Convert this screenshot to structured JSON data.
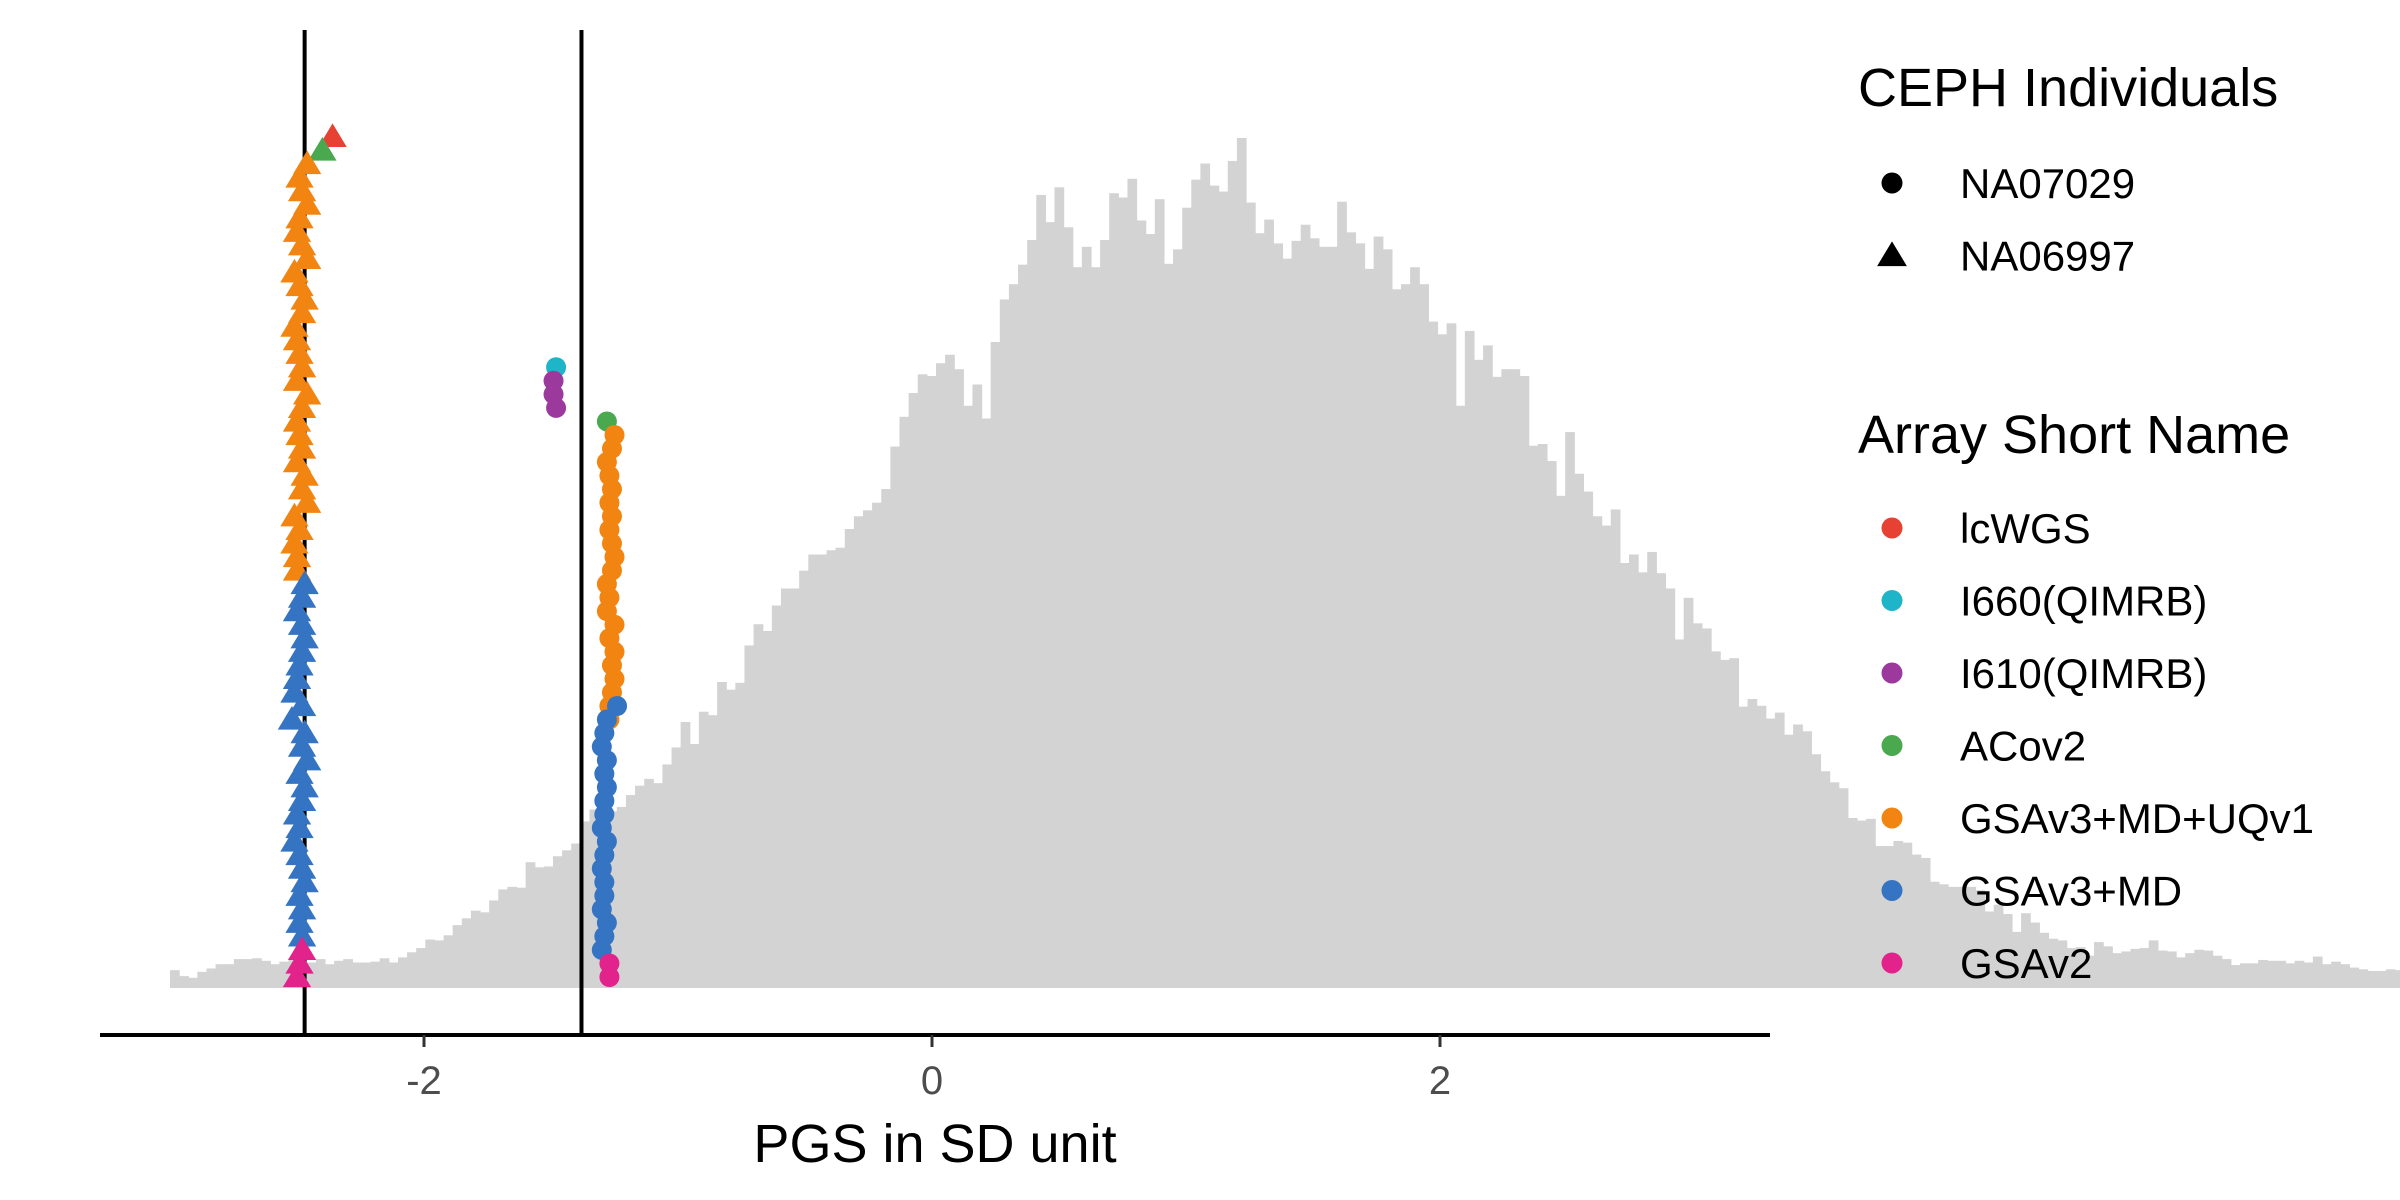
{
  "chart_data": {
    "type": "histogram",
    "xlabel": "PGS in SD unit",
    "ylabel": "",
    "xlim": [
      -3.3,
      3.3
    ],
    "x_ticks": [
      -2,
      0,
      2
    ],
    "x_tick_labels": [
      "-2",
      "0",
      "2"
    ],
    "grid": false,
    "histogram": {
      "color": "#d3d3d3",
      "bin_width": 0.0359,
      "range": [
        -3.0,
        3.0
      ],
      "relative_heights": [
        0.021,
        0.014,
        0.012,
        0.019,
        0.023,
        0.028,
        0.028,
        0.034,
        0.034,
        0.035,
        0.032,
        0.028,
        0.031,
        0.033,
        0.03,
        0.03,
        0.034,
        0.028,
        0.032,
        0.034,
        0.03,
        0.03,
        0.031,
        0.035,
        0.03,
        0.036,
        0.042,
        0.047,
        0.057,
        0.056,
        0.062,
        0.074,
        0.082,
        0.091,
        0.089,
        0.103,
        0.116,
        0.119,
        0.118,
        0.148,
        0.142,
        0.143,
        0.155,
        0.162,
        0.17,
        0.196,
        0.21,
        0.201,
        0.208,
        0.213,
        0.227,
        0.238,
        0.246,
        0.241,
        0.263,
        0.283,
        0.313,
        0.287,
        0.325,
        0.321,
        0.36,
        0.351,
        0.359,
        0.403,
        0.428,
        0.42,
        0.45,
        0.47,
        0.47,
        0.491,
        0.51,
        0.51,
        0.515,
        0.518,
        0.54,
        0.555,
        0.562,
        0.571,
        0.587,
        0.637,
        0.672,
        0.7,
        0.722,
        0.72,
        0.735,
        0.745,
        0.728,
        0.685,
        0.71,
        0.67,
        0.76,
        0.81,
        0.828,
        0.851,
        0.88,
        0.933,
        0.901,
        0.942,
        0.895,
        0.848,
        0.872,
        0.848,
        0.88,
        0.935,
        0.93,
        0.952,
        0.903,
        0.887,
        0.928,
        0.852,
        0.869,
        0.918,
        0.951,
        0.97,
        0.944,
        0.937,
        0.973,
        1.0,
        0.924,
        0.888,
        0.904,
        0.876,
        0.858,
        0.879,
        0.898,
        0.882,
        0.872,
        0.872,
        0.925,
        0.889,
        0.876,
        0.846,
        0.884,
        0.869,
        0.822,
        0.828,
        0.848,
        0.828,
        0.784,
        0.769,
        0.782,
        0.685,
        0.773,
        0.739,
        0.756,
        0.719,
        0.728,
        0.728,
        0.72,
        0.638,
        0.64,
        0.62,
        0.579,
        0.654,
        0.605,
        0.584,
        0.555,
        0.544,
        0.563,
        0.5,
        0.51,
        0.489,
        0.513,
        0.488,
        0.47,
        0.41,
        0.459,
        0.429,
        0.423,
        0.396,
        0.386,
        0.388,
        0.331,
        0.34,
        0.332,
        0.317,
        0.324,
        0.298,
        0.31,
        0.302,
        0.275,
        0.255,
        0.242,
        0.235,
        0.2,
        0.197,
        0.199,
        0.167,
        0.167,
        0.173,
        0.171,
        0.157,
        0.153,
        0.125,
        0.122,
        0.119,
        0.119,
        0.119,
        0.115,
        0.09,
        0.098,
        0.087,
        0.066,
        0.088,
        0.077,
        0.065,
        0.058,
        0.056,
        0.047,
        0.048,
        0.038,
        0.054,
        0.049,
        0.041,
        0.043,
        0.046,
        0.047,
        0.056,
        0.044,
        0.043,
        0.036,
        0.041,
        0.045,
        0.044,
        0.038,
        0.034,
        0.027,
        0.029,
        0.029,
        0.033,
        0.032,
        0.032,
        0.029,
        0.032,
        0.03,
        0.037,
        0.028,
        0.031,
        0.028,
        0.024,
        0.022,
        0.02,
        0.02,
        0.022,
        0.021,
        0.024,
        0.02,
        0.021,
        0.014,
        0.015,
        0.016,
        0.014
      ]
    },
    "vlines": [
      -2.47,
      -1.38
    ],
    "legends": [
      {
        "title": "CEPH Individuals",
        "entries": [
          {
            "label": "NA07029",
            "shape": "circle",
            "color": "#000000"
          },
          {
            "label": "NA06997",
            "shape": "triangle",
            "color": "#000000"
          }
        ]
      },
      {
        "title": "Array Short Name",
        "entries": [
          {
            "label": "lcWGS",
            "shape": "circle",
            "color": "#e64133"
          },
          {
            "label": "I660(QIMRB)",
            "shape": "circle",
            "color": "#1fb5c9"
          },
          {
            "label": "I610(QIMRB)",
            "shape": "circle",
            "color": "#9b3a9c"
          },
          {
            "label": "ACov2",
            "shape": "circle",
            "color": "#4aa84f"
          },
          {
            "label": "GSAv3+MD+UQv1",
            "shape": "circle",
            "color": "#f28511"
          },
          {
            "label": "GSAv3+MD",
            "shape": "circle",
            "color": "#3574c2"
          },
          {
            "label": "GSAv2",
            "shape": "circle",
            "color": "#e2238c"
          }
        ]
      }
    ],
    "points": [
      {
        "individual": "NA06997",
        "array": "lcWGS",
        "x": -2.36,
        "rank": 62
      },
      {
        "individual": "NA06997",
        "array": "ACov2",
        "x": -2.4,
        "rank": 61
      },
      {
        "individual": "NA06997",
        "array": "GSAv3+MD+UQv1",
        "x": [
          -2.5,
          -2.5,
          -2.51,
          -2.49,
          -2.51,
          -2.46,
          -2.48,
          -2.47,
          -2.5,
          -2.48,
          -2.49,
          -2.5,
          -2.48,
          -2.46,
          -2.5,
          -2.48,
          -2.49,
          -2.5,
          -2.51,
          -2.48,
          -2.47,
          -2.49,
          -2.51,
          -2.46,
          -2.48,
          -2.5,
          -2.49,
          -2.46,
          -2.48,
          -2.49,
          -2.46
        ],
        "rank_start": 30
      },
      {
        "individual": "NA06997",
        "array": "GSAv3+MD",
        "x": [
          -2.48,
          -2.49,
          -2.48,
          -2.49,
          -2.47,
          -2.48,
          -2.49,
          -2.51,
          -2.49,
          -2.5,
          -2.48,
          -2.47,
          -2.49,
          -2.46,
          -2.48,
          -2.47,
          -2.52,
          -2.48,
          -2.51,
          -2.5,
          -2.49,
          -2.48,
          -2.47,
          -2.48,
          -2.5,
          -2.48,
          -2.47
        ],
        "rank_start": 3
      },
      {
        "individual": "NA06997",
        "array": "GSAv2",
        "x": [
          -2.5,
          -2.49,
          -2.48
        ],
        "rank_start": 0
      },
      {
        "individual": "NA07029",
        "array": "I660(QIMRB)",
        "x": -1.48,
        "rank": 45
      },
      {
        "individual": "NA07029",
        "array": "I610(QIMRB)",
        "x": [
          -1.48,
          -1.49,
          -1.49
        ],
        "rank_start": 42
      },
      {
        "individual": "NA07029",
        "array": "ACov2",
        "x": -1.28,
        "rank": 41
      },
      {
        "individual": "NA07029",
        "array": "GSAv3+MD+UQv1",
        "x": [
          -1.27,
          -1.27,
          -1.26,
          -1.25,
          -1.26,
          -1.25,
          -1.27,
          -1.25,
          -1.28,
          -1.27,
          -1.28,
          -1.26,
          -1.25,
          -1.26,
          -1.27,
          -1.26,
          -1.27,
          -1.26,
          -1.27,
          -1.28,
          -1.26,
          -1.25
        ],
        "rank_start": 19
      },
      {
        "individual": "NA07029",
        "array": "GSAv3+MD",
        "x": [
          -1.3,
          -1.29,
          -1.28,
          -1.3,
          -1.29,
          -1.29,
          -1.3,
          -1.29,
          -1.28,
          -1.3,
          -1.29,
          -1.29,
          -1.28,
          -1.29,
          -1.28,
          -1.3,
          -1.29,
          -1.28,
          -1.24
        ],
        "rank_start": 2
      },
      {
        "individual": "NA07029",
        "array": "GSAv2",
        "x": [
          -1.27,
          -1.27
        ],
        "rank_start": 0
      }
    ]
  }
}
